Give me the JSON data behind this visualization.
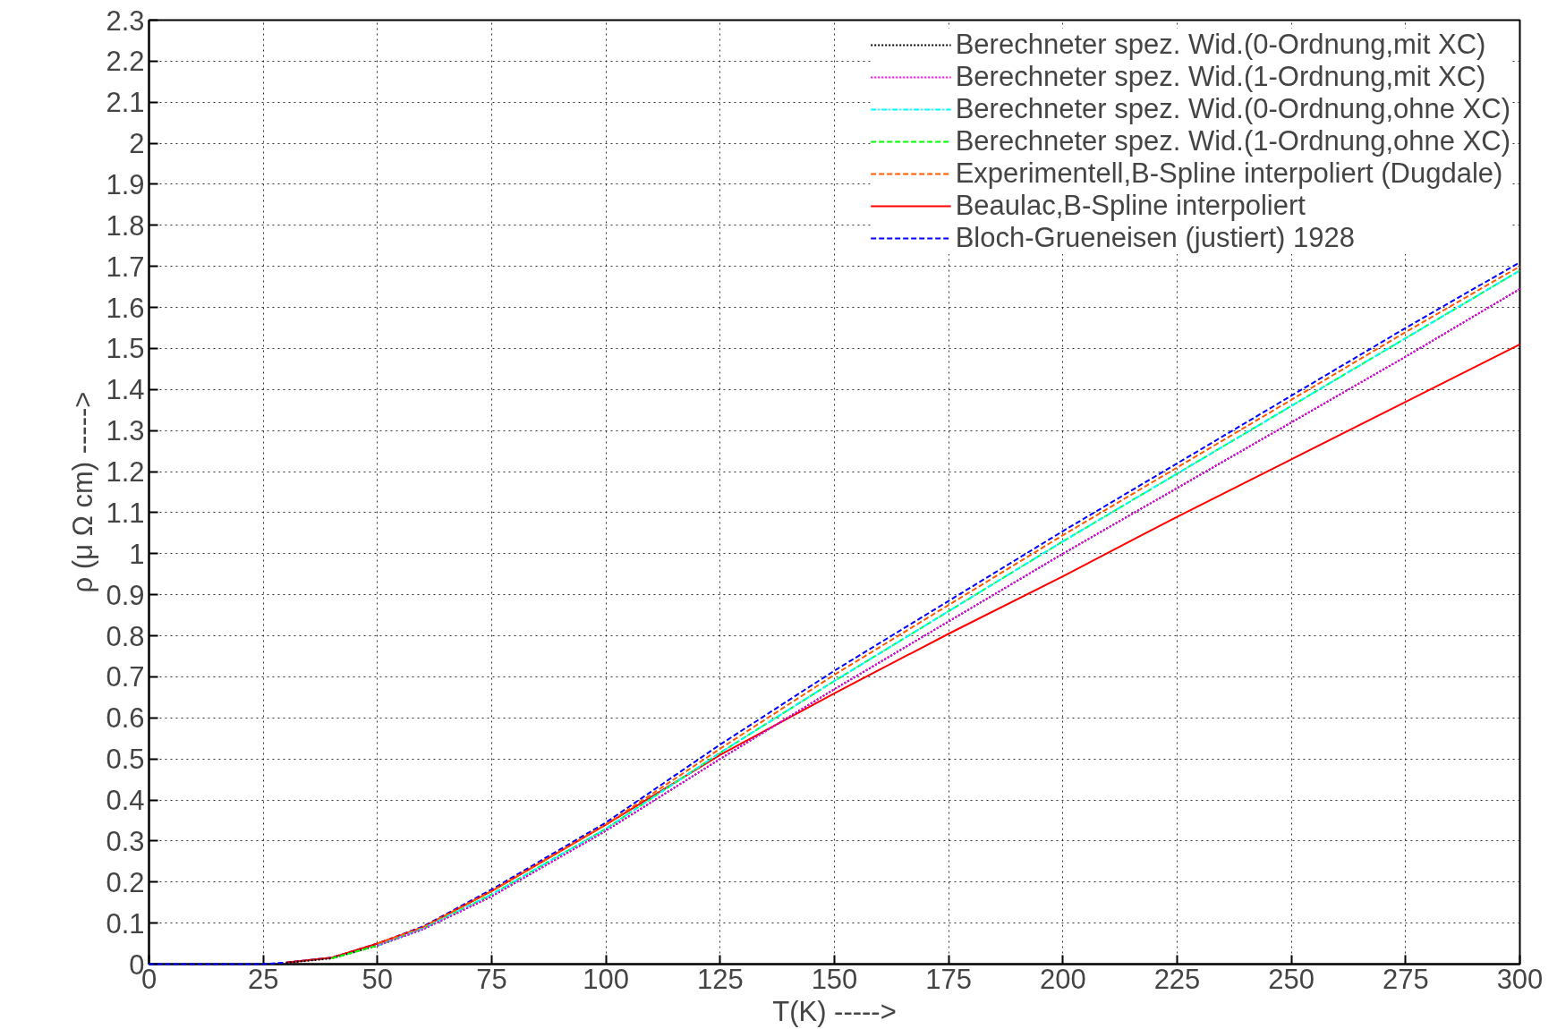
{
  "chart_data": {
    "type": "line",
    "xlabel": "T(K) ----->",
    "ylabel": "ρ (μ Ω cm) ----->",
    "x": [
      0,
      20,
      25,
      30,
      40,
      50,
      60,
      75,
      100,
      125,
      150,
      175,
      200,
      225,
      250,
      275,
      300
    ],
    "xlim": [
      0,
      300
    ],
    "xticks": [
      0,
      25,
      50,
      75,
      100,
      125,
      150,
      175,
      200,
      225,
      250,
      275,
      300
    ],
    "ylim": [
      0,
      2.3
    ],
    "yticks": [
      0,
      0.1,
      0.2,
      0.3,
      0.4,
      0.5,
      0.6,
      0.7,
      0.8,
      0.9,
      1,
      1.1,
      1.2,
      1.3,
      1.4,
      1.5,
      1.6,
      1.7,
      1.8,
      1.9,
      2,
      2.1,
      2.2,
      2.3
    ],
    "grid": true,
    "legend": "top right",
    "marker": "none",
    "series": [
      {
        "name": "Berechneter spez. Wid.(0-Ordnung,mit XC)",
        "color": "#000000",
        "line_style": "dotted",
        "values": [
          null,
          null,
          null,
          0.003,
          0.014,
          0.045,
          0.085,
          0.165,
          0.325,
          0.5,
          0.67,
          0.835,
          1.0,
          1.16,
          1.32,
          1.48,
          1.645
        ]
      },
      {
        "name": "Berechneter spez. Wid.(1-Ordnung,mit XC)",
        "color": "#ff00ff",
        "line_style": "dotted",
        "values": [
          null,
          null,
          null,
          null,
          null,
          0.045,
          0.085,
          0.165,
          0.325,
          0.5,
          0.67,
          0.835,
          1.0,
          1.16,
          1.32,
          1.48,
          1.645
        ]
      },
      {
        "name": "Berechneter spez. Wid.(0-Ordnung,ohne XC)",
        "color": "#00ffff",
        "line_style": "dashdot",
        "values": [
          null,
          null,
          null,
          null,
          null,
          0.045,
          0.087,
          0.17,
          0.33,
          0.515,
          0.69,
          0.86,
          1.03,
          1.195,
          1.36,
          1.525,
          1.69
        ]
      },
      {
        "name": "Berechneter spez. Wid.(1-Ordnung,ohne XC)",
        "color": "#00ff00",
        "line_style": "dashed",
        "values": [
          null,
          null,
          null,
          null,
          0.014,
          0.045,
          0.087,
          0.17,
          0.33,
          0.515,
          0.69,
          0.86,
          1.03,
          1.195,
          1.36,
          1.525,
          1.69
        ]
      },
      {
        "name": "Experimentell,B-Spline interpoliert (Dugdale)",
        "color": "#ff5a00",
        "line_style": "dashed",
        "values": [
          null,
          null,
          null,
          null,
          null,
          0.05,
          0.09,
          0.178,
          0.34,
          0.525,
          0.705,
          0.875,
          1.045,
          1.21,
          1.375,
          1.54,
          1.7
        ]
      },
      {
        "name": "Beaulac,B-Spline interpoliert",
        "color": "#ff0000",
        "line_style": "solid",
        "values": [
          null,
          null,
          null,
          0.004,
          0.016,
          0.05,
          0.09,
          0.178,
          0.34,
          0.51,
          0.66,
          0.805,
          0.945,
          1.09,
          1.23,
          1.37,
          1.51
        ]
      },
      {
        "name": "Bloch-Grueneisen (justiert) 1928",
        "color": "#0000ff",
        "line_style": "dashed",
        "values": [
          0,
          0,
          0,
          0.004,
          0.016,
          0.05,
          0.092,
          0.182,
          0.345,
          0.535,
          0.715,
          0.885,
          1.055,
          1.22,
          1.385,
          1.55,
          1.71
        ]
      }
    ]
  }
}
